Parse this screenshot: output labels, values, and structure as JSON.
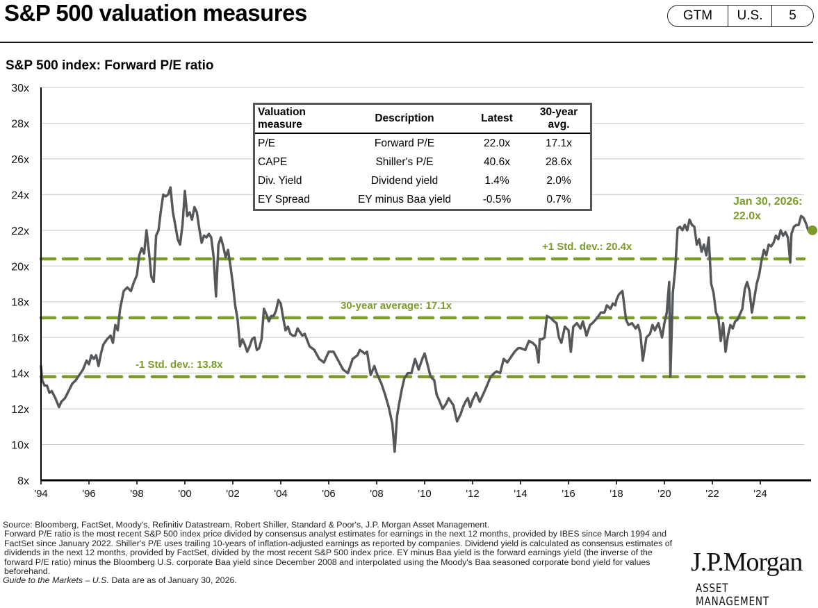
{
  "header": {
    "title": "S&P 500 valuation measures",
    "badge": [
      "GTM",
      "U.S.",
      "5"
    ]
  },
  "subtitle": "S&P 500 index: Forward P/E ratio",
  "valuation_table": {
    "headers": [
      "Valuation measure",
      "Description",
      "Latest",
      "30-year avg."
    ],
    "rows": [
      [
        "P/E",
        "Forward P/E",
        "22.0x",
        "17.1x"
      ],
      [
        "CAPE",
        "Shiller's P/E",
        "40.6x",
        "28.6x"
      ],
      [
        "Div. Yield",
        "Dividend yield",
        "1.4%",
        "2.0%"
      ],
      [
        "EY Spread",
        "EY minus Baa yield",
        "-0.5%",
        "0.7%"
      ]
    ]
  },
  "chart_data": {
    "type": "line",
    "title": "S&P 500 index: Forward P/E ratio",
    "xlabel": "",
    "ylabel": "",
    "ylim": [
      8,
      30
    ],
    "xlim": [
      1994.0,
      2026.1
    ],
    "y_ticks": [
      "8x",
      "10x",
      "12x",
      "14x",
      "16x",
      "18x",
      "20x",
      "22x",
      "24x",
      "26x",
      "28x",
      "30x"
    ],
    "x_ticks": [
      "'94",
      "'96",
      "'98",
      "'00",
      "'02",
      "'04",
      "'06",
      "'08",
      "'10",
      "'12",
      "'14",
      "'16",
      "'18",
      "'20",
      "'22",
      "'24"
    ],
    "grid": true,
    "colors": {
      "line": "#54585a",
      "reference": "#7a9c2a",
      "grid": "#c8c8c8"
    },
    "series": [
      {
        "name": "Forward P/E",
        "x": [
          1994.0,
          1994.05,
          1994.15,
          1994.25,
          1994.35,
          1994.45,
          1994.6,
          1994.75,
          1994.85,
          1995.0,
          1995.15,
          1995.3,
          1995.45,
          1995.6,
          1995.75,
          1995.9,
          1996.0,
          1996.1,
          1996.2,
          1996.3,
          1996.4,
          1996.5,
          1996.6,
          1996.75,
          1996.9,
          1997.0,
          1997.1,
          1997.2,
          1997.3,
          1997.45,
          1997.6,
          1997.75,
          1997.85,
          1998.0,
          1998.1,
          1998.2,
          1998.3,
          1998.4,
          1998.5,
          1998.6,
          1998.7,
          1998.8,
          1998.9,
          1999.0,
          1999.1,
          1999.2,
          1999.3,
          1999.4,
          1999.5,
          1999.6,
          1999.7,
          1999.8,
          1999.9,
          2000.0,
          2000.1,
          2000.2,
          2000.3,
          2000.4,
          2000.5,
          2000.6,
          2000.7,
          2000.8,
          2000.9,
          2001.0,
          2001.1,
          2001.2,
          2001.3,
          2001.4,
          2001.5,
          2001.6,
          2001.7,
          2001.8,
          2001.9,
          2002.0,
          2002.1,
          2002.2,
          2002.3,
          2002.4,
          2002.5,
          2002.6,
          2002.7,
          2002.8,
          2002.9,
          2003.0,
          2003.1,
          2003.2,
          2003.3,
          2003.4,
          2003.5,
          2003.6,
          2003.7,
          2003.8,
          2003.9,
          2004.0,
          2004.1,
          2004.2,
          2004.3,
          2004.4,
          2004.5,
          2004.6,
          2004.7,
          2004.8,
          2004.9,
          2005.0,
          2005.2,
          2005.4,
          2005.6,
          2005.8,
          2006.0,
          2006.2,
          2006.4,
          2006.6,
          2006.8,
          2007.0,
          2007.2,
          2007.3,
          2007.5,
          2007.6,
          2007.75,
          2007.9,
          2008.0,
          2008.2,
          2008.35,
          2008.5,
          2008.65,
          2008.75,
          2008.85,
          2008.95,
          2009.05,
          2009.15,
          2009.3,
          2009.45,
          2009.6,
          2009.75,
          2009.9,
          2010.0,
          2010.1,
          2010.25,
          2010.4,
          2010.5,
          2010.6,
          2010.75,
          2010.9,
          2011.0,
          2011.2,
          2011.35,
          2011.5,
          2011.6,
          2011.7,
          2011.8,
          2011.9,
          2012.0,
          2012.15,
          2012.3,
          2012.4,
          2012.5,
          2012.6,
          2012.75,
          2012.9,
          2013.0,
          2013.15,
          2013.3,
          2013.45,
          2013.6,
          2013.75,
          2013.9,
          2014.0,
          2014.2,
          2014.35,
          2014.5,
          2014.65,
          2014.75,
          2014.8,
          2014.9,
          2015.0,
          2015.1,
          2015.25,
          2015.4,
          2015.5,
          2015.6,
          2015.7,
          2015.85,
          2016.0,
          2016.1,
          2016.2,
          2016.35,
          2016.5,
          2016.6,
          2016.75,
          2016.9,
          2017.0,
          2017.2,
          2017.35,
          2017.5,
          2017.6,
          2017.75,
          2017.85,
          2017.95,
          2018.0,
          2018.1,
          2018.25,
          2018.4,
          2018.5,
          2018.65,
          2018.8,
          2018.9,
          2019.0,
          2019.1,
          2019.25,
          2019.4,
          2019.5,
          2019.6,
          2019.75,
          2019.9,
          2020.0,
          2020.1,
          2020.15,
          2020.2,
          2020.25,
          2020.35,
          2020.45,
          2020.55,
          2020.65,
          2020.75,
          2020.85,
          2020.95,
          2021.05,
          2021.15,
          2021.25,
          2021.35,
          2021.45,
          2021.55,
          2021.65,
          2021.75,
          2021.85,
          2021.95,
          2022.05,
          2022.15,
          2022.25,
          2022.35,
          2022.45,
          2022.55,
          2022.65,
          2022.75,
          2022.85,
          2022.95,
          2023.05,
          2023.15,
          2023.25,
          2023.35,
          2023.45,
          2023.55,
          2023.65,
          2023.75,
          2023.85,
          2023.95,
          2024.05,
          2024.15,
          2024.25,
          2024.35,
          2024.45,
          2024.55,
          2024.65,
          2024.75,
          2024.85,
          2024.95,
          2025.05,
          2025.15,
          2025.25,
          2025.3,
          2025.4,
          2025.5,
          2025.6,
          2025.7,
          2025.8,
          2025.9,
          2026.0
        ],
        "values": [
          14.4,
          13.6,
          13.3,
          13.3,
          12.9,
          13.0,
          12.6,
          12.1,
          12.4,
          12.6,
          13.0,
          13.4,
          13.6,
          13.9,
          14.2,
          14.7,
          14.5,
          15.0,
          14.8,
          15.0,
          14.4,
          15.1,
          15.6,
          15.9,
          16.1,
          15.7,
          16.7,
          16.4,
          17.6,
          18.6,
          18.8,
          18.6,
          19.0,
          19.5,
          20.6,
          21.0,
          20.7,
          22.0,
          20.8,
          19.4,
          19.1,
          21.7,
          22.0,
          23.1,
          24.0,
          23.9,
          24.0,
          24.4,
          23.0,
          22.3,
          21.5,
          21.2,
          22.3,
          24.2,
          22.8,
          23.0,
          22.6,
          23.3,
          23.0,
          22.1,
          21.3,
          21.7,
          21.6,
          21.8,
          21.6,
          20.5,
          18.3,
          21.2,
          21.6,
          21.1,
          20.5,
          20.9,
          20.0,
          19.0,
          17.8,
          17.0,
          15.5,
          15.9,
          15.6,
          15.2,
          15.5,
          15.9,
          16.0,
          15.3,
          15.4,
          15.9,
          17.6,
          17.3,
          16.9,
          17.2,
          17.2,
          17.5,
          18.1,
          17.9,
          17.1,
          16.4,
          16.6,
          16.2,
          16.1,
          16.1,
          16.5,
          16.3,
          16.1,
          16.2,
          15.5,
          15.3,
          14.8,
          14.6,
          15.2,
          15.2,
          14.7,
          14.2,
          14.0,
          14.8,
          15.0,
          15.3,
          15.1,
          15.2,
          13.9,
          14.4,
          14.0,
          13.4,
          12.8,
          12.1,
          11.2,
          9.6,
          11.6,
          12.4,
          13.1,
          13.7,
          14.0,
          14.0,
          14.8,
          14.2,
          14.8,
          15.1,
          14.6,
          13.8,
          13.6,
          12.8,
          12.5,
          12.0,
          12.3,
          12.6,
          12.2,
          11.3,
          11.7,
          12.1,
          12.4,
          12.6,
          12.1,
          12.5,
          12.9,
          12.4,
          12.7,
          13.0,
          13.3,
          13.8,
          14.0,
          14.1,
          14.0,
          14.8,
          14.6,
          14.9,
          15.2,
          15.4,
          15.4,
          15.3,
          15.8,
          15.7,
          15.5,
          14.6,
          15.9,
          15.9,
          16.0,
          17.2,
          17.1,
          16.9,
          16.8,
          16.0,
          15.7,
          16.6,
          16.4,
          15.2,
          16.6,
          16.8,
          16.5,
          16.9,
          16.1,
          16.7,
          16.8,
          17.1,
          17.4,
          17.4,
          17.8,
          17.6,
          17.9,
          17.8,
          18.1,
          18.4,
          18.6,
          17.0,
          16.7,
          16.8,
          16.5,
          16.7,
          16.2,
          14.7,
          16.0,
          16.2,
          16.7,
          16.4,
          16.8,
          16.0,
          16.8,
          17.4,
          18.3,
          19.1,
          13.8,
          18.5,
          19.8,
          22.1,
          22.2,
          22.0,
          22.3,
          22.0,
          22.6,
          22.3,
          22.2,
          21.2,
          21.5,
          20.8,
          21.2,
          20.6,
          21.6,
          19.0,
          18.5,
          17.4,
          17.1,
          15.8,
          16.8,
          15.2,
          16.1,
          16.7,
          16.5,
          16.9,
          17.0,
          17.3,
          17.6,
          18.7,
          19.1,
          18.6,
          17.4,
          18.2,
          19.0,
          19.5,
          20.3,
          20.9,
          20.6,
          21.2,
          21.1,
          21.3,
          21.7,
          21.5,
          22.0,
          21.7,
          21.9,
          21.6,
          20.2,
          21.8,
          22.2,
          22.3,
          22.3,
          22.8,
          22.7,
          22.4,
          22.0
        ]
      }
    ],
    "reference_lines": [
      {
        "label": "+1 Std. dev.: 20.4x",
        "value": 20.4
      },
      {
        "label": "30-year average: 17.1x",
        "value": 17.1
      },
      {
        "label": "-1 Std. dev.: 13.8x",
        "value": 13.8
      }
    ],
    "annotations": [
      {
        "text_line1": "Jan 30, 2026:",
        "text_line2": "22.0x",
        "x": 2026.0,
        "y": 22.0
      }
    ]
  },
  "footnote": {
    "source": "Source: Bloomberg, FactSet, Moody's, Refinitiv Datastream, Robert Shiller, Standard & Poor's, J.P. Morgan Asset Management.",
    "body": "Forward P/E ratio is the most recent S&P 500 index price divided by consensus analyst estimates for earnings in the next 12 months, provided by IBES since March 1994 and FactSet since January 2022. Shiller's P/E uses trailing 10-years of inflation-adjusted earnings as reported by companies. Dividend yield is calculated as consensus estimates of dividends in the next 12 months, provided by FactSet, divided by the most recent S&P 500 index price. EY minus Baa yield is the forward earnings yield (the inverse of the forward P/E ratio) minus the Bloomberg U.S. corporate Baa yield since December 2008 and interpolated using the Moody's Baa seasoned corporate bond yield for values beforehand.",
    "guide_italic": "Guide to the Markets – U.S.",
    "guide_rest": " Data are as of January 30, 2026."
  },
  "logo": {
    "name": "J.P.Morgan",
    "sub": "ASSET MANAGEMENT"
  }
}
